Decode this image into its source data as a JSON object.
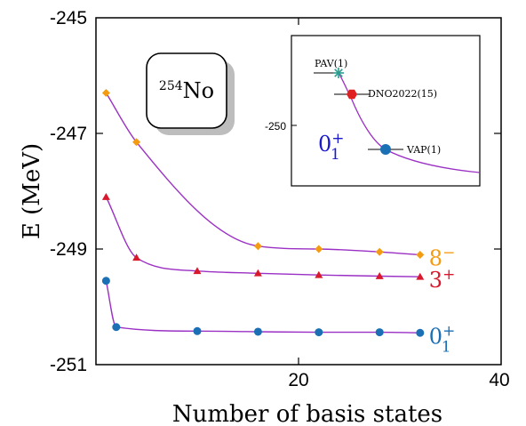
{
  "chart_data": {
    "type": "line",
    "xlabel": "Number of basis states",
    "ylabel": "E (MeV)",
    "xlim": [
      0,
      40
    ],
    "ylim": [
      -251,
      -245
    ],
    "x_ticks": [
      "20",
      "40"
    ],
    "y_ticks": [
      "-245",
      "-247",
      "-249",
      "-251"
    ],
    "nucleus": {
      "mass": "254",
      "symbol": "No"
    },
    "series": [
      {
        "name": "8",
        "sup": "−",
        "sub": "",
        "color": "#f39c12",
        "marker": "diamond",
        "x": [
          1,
          4,
          16,
          22,
          28,
          32
        ],
        "y": [
          -246.3,
          -247.15,
          -248.95,
          -249.0,
          -249.05,
          -249.1
        ]
      },
      {
        "name": "3",
        "sup": "+",
        "sub": "",
        "color": "#d9182d",
        "marker": "triangle",
        "x": [
          1,
          4,
          10,
          16,
          22,
          28,
          32
        ],
        "y": [
          -248.1,
          -249.15,
          -249.38,
          -249.42,
          -249.45,
          -249.47,
          -249.48
        ]
      },
      {
        "name": "0",
        "sup": "+",
        "sub": "1",
        "color": "#1a6fb5",
        "marker": "circle",
        "x": [
          1,
          2,
          10,
          16,
          22,
          28,
          32
        ],
        "y": [
          -249.55,
          -250.35,
          -250.42,
          -250.43,
          -250.44,
          -250.44,
          -250.45
        ]
      }
    ],
    "line_color": "#9b30c4",
    "inset": {
      "y_tick": "-250",
      "state_label": {
        "name": "0",
        "sup": "+",
        "sub": "1",
        "color": "#1a1acc"
      },
      "points": [
        {
          "label": "PAV(1)",
          "marker": "star",
          "color": "#2a9d8f",
          "x": 2.5,
          "y": -249.15
        },
        {
          "label": "DNO2022(15)",
          "marker": "hexagon",
          "color": "#e02020",
          "x": 3.0,
          "y": -249.45
        },
        {
          "label": "VAP(1)",
          "marker": "circle",
          "color": "#1a6fb5",
          "x": 4.8,
          "y": -250.35
        }
      ]
    }
  }
}
